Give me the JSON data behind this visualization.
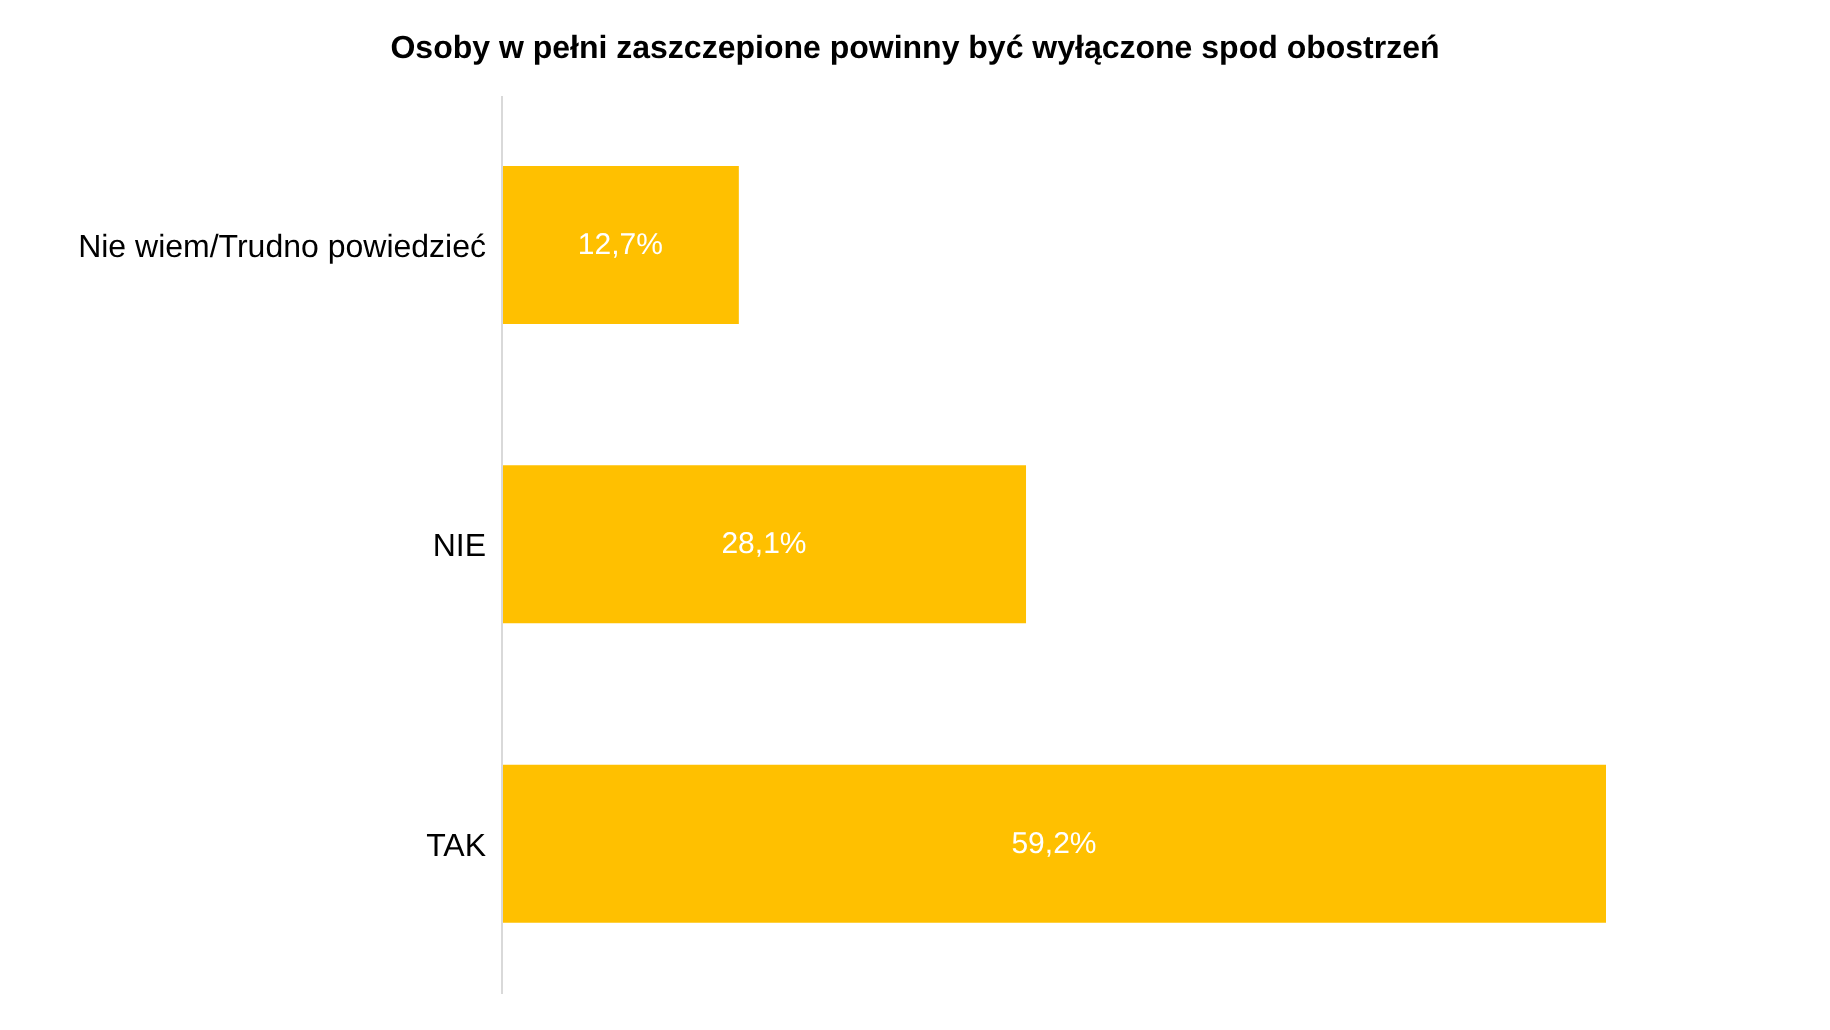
{
  "chart_data": {
    "type": "bar",
    "orientation": "horizontal",
    "title": "Osoby w pełni zaszczepione powinny być wyłączone spod obostrzeń",
    "categories": [
      "Nie wiem/Trudno powiedzieć",
      "NIE",
      "TAK"
    ],
    "values": [
      12.7,
      28.1,
      59.2
    ],
    "value_labels": [
      "12,7%",
      "28,1%",
      "59,2%"
    ],
    "color": "#ffc000"
  }
}
